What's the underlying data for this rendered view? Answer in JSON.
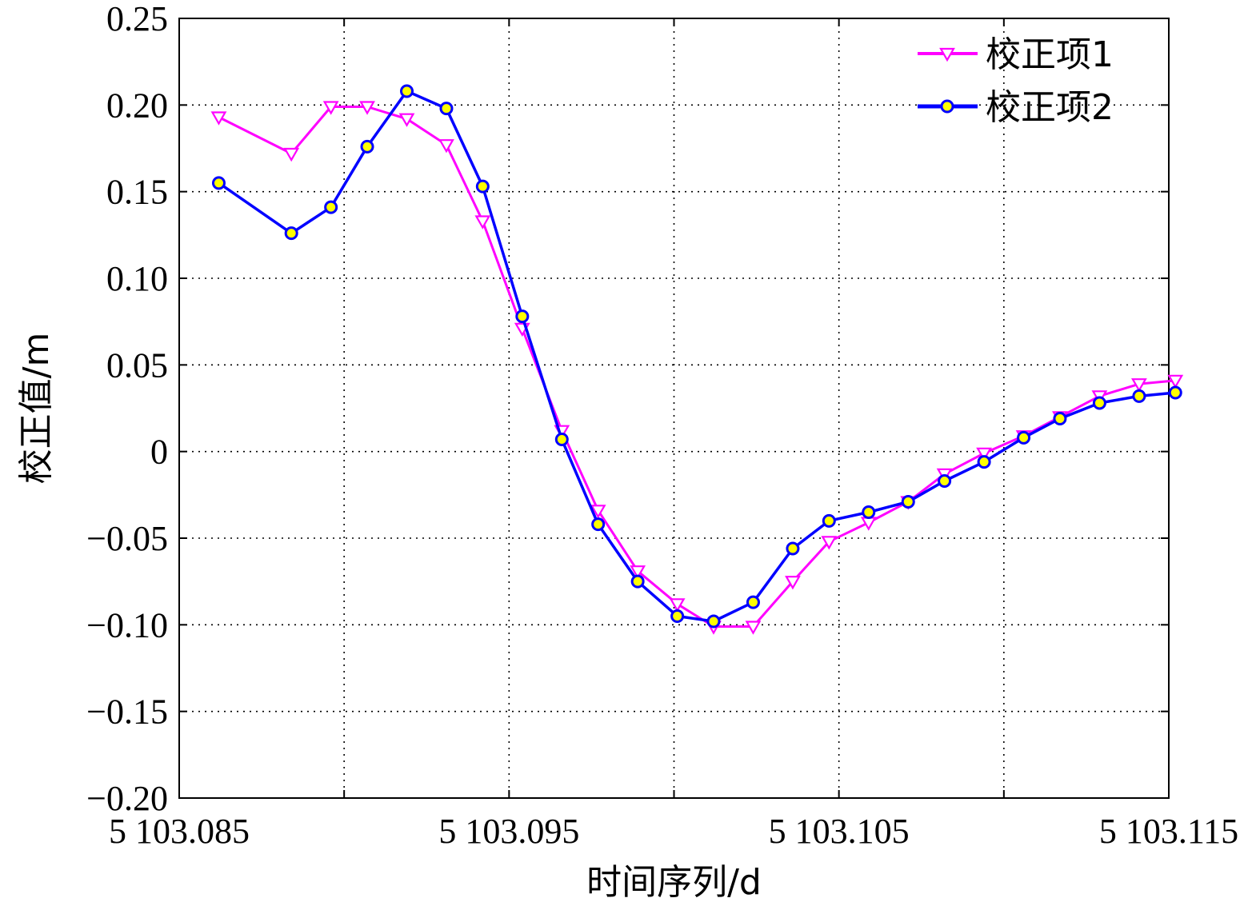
{
  "chart_data": {
    "type": "line",
    "title": "",
    "xlabel": "时间序列/d",
    "ylabel": "校正值/m",
    "xlim": [
      5103.085,
      5103.115
    ],
    "ylim": [
      -0.2,
      0.25
    ],
    "x_ticks": [
      5103.085,
      5103.095,
      5103.105,
      5103.115
    ],
    "x_tick_labels": [
      "5 103.085",
      "5 103.095",
      "5 103.105",
      "5 103.115"
    ],
    "y_ticks": [
      -0.2,
      -0.15,
      -0.1,
      -0.05,
      0,
      0.05,
      0.1,
      0.15,
      0.2,
      0.25
    ],
    "y_tick_labels": [
      "−0.20",
      "−0.15",
      "−0.10",
      "−0.05",
      "0",
      "0.05",
      "0.10",
      "0.15",
      "0.20",
      "0.25"
    ],
    "x_grid_extra": [
      5103.09,
      5103.1,
      5103.11
    ],
    "grid": true,
    "legend_position": "top-right",
    "series": [
      {
        "name": "校正项1",
        "color": "#ff00ff",
        "marker": "triangle-down",
        "x": [
          5103.0862,
          5103.0884,
          5103.0896,
          5103.0907,
          5103.0919,
          5103.0931,
          5103.0942,
          5103.0954,
          5103.0966,
          5103.0977,
          5103.0989,
          5103.1001,
          5103.1012,
          5103.1024,
          5103.1036,
          5103.1047,
          5103.1059,
          5103.1071,
          5103.1082,
          5103.1094,
          5103.1106,
          5103.1117,
          5103.1129,
          5103.1141,
          5103.1152
        ],
        "y": [
          0.193,
          0.172,
          0.199,
          0.199,
          0.192,
          0.177,
          0.133,
          0.071,
          0.012,
          -0.034,
          -0.069,
          -0.088,
          -0.101,
          -0.101,
          -0.075,
          -0.052,
          -0.041,
          -0.029,
          -0.013,
          -0.001,
          0.009,
          0.02,
          0.032,
          0.039,
          0.041
        ]
      },
      {
        "name": "校正项2",
        "color": "#0000ff",
        "marker": "circle",
        "x": [
          5103.0862,
          5103.0884,
          5103.0896,
          5103.0907,
          5103.0919,
          5103.0931,
          5103.0942,
          5103.0954,
          5103.0966,
          5103.0977,
          5103.0989,
          5103.1001,
          5103.1012,
          5103.1024,
          5103.1036,
          5103.1047,
          5103.1059,
          5103.1071,
          5103.1082,
          5103.1094,
          5103.1106,
          5103.1117,
          5103.1129,
          5103.1141,
          5103.1152
        ],
        "y": [
          0.155,
          0.126,
          0.141,
          0.176,
          0.208,
          0.198,
          0.153,
          0.078,
          0.007,
          -0.042,
          -0.075,
          -0.095,
          -0.098,
          -0.087,
          -0.056,
          -0.04,
          -0.035,
          -0.029,
          -0.017,
          -0.006,
          0.008,
          0.019,
          0.028,
          0.032,
          0.034
        ]
      }
    ]
  }
}
